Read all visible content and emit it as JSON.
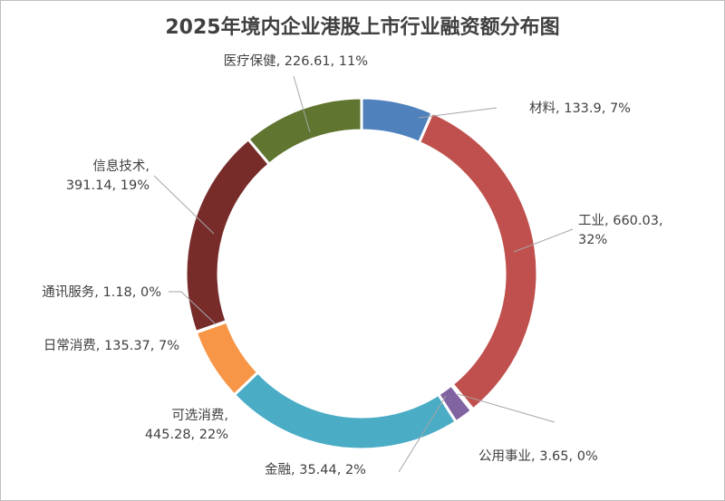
{
  "chart_data": {
    "type": "pie",
    "style": "doughnut",
    "title": "2025年境内企业港股上市行业融资额分布图",
    "slices": [
      {
        "name": "材料",
        "value": 133.9,
        "percent": "7%",
        "color": "#4f81bd",
        "label": "材料, 133.9, 7%"
      },
      {
        "name": "工业",
        "value": 660.03,
        "percent": "32%",
        "color": "#c0504d",
        "label": [
          "工业, 660.03,",
          "32%"
        ]
      },
      {
        "name": "公用事业",
        "value": 3.65,
        "percent": "0%",
        "color": "#ffffff",
        "label": "公用事业, 3.65, 0%"
      },
      {
        "name": "金融",
        "value": 35.44,
        "percent": "2%",
        "color": "#8064a2",
        "label": "金融, 35.44, 2%"
      },
      {
        "name": "可选消费",
        "value": 445.28,
        "percent": "22%",
        "color": "#4bacc6",
        "label": [
          "可选消费,",
          "445.28, 22%"
        ]
      },
      {
        "name": "日常消费",
        "value": 135.37,
        "percent": "7%",
        "color": "#f79646",
        "label": "日常消费, 135.37, 7%"
      },
      {
        "name": "通讯服务",
        "value": 1.18,
        "percent": "0%",
        "color": "#ffffff",
        "label": "通讯服务, 1.18, 0%"
      },
      {
        "name": "信息技术",
        "value": 391.14,
        "percent": "19%",
        "color": "#772c2a",
        "label": [
          "信息技术,",
          "391.14, 19%"
        ]
      },
      {
        "name": "医疗保健",
        "value": 226.61,
        "percent": "11%",
        "color": "#5f7530",
        "label": "医疗保健, 226.61, 11%"
      }
    ],
    "legend": "none"
  }
}
